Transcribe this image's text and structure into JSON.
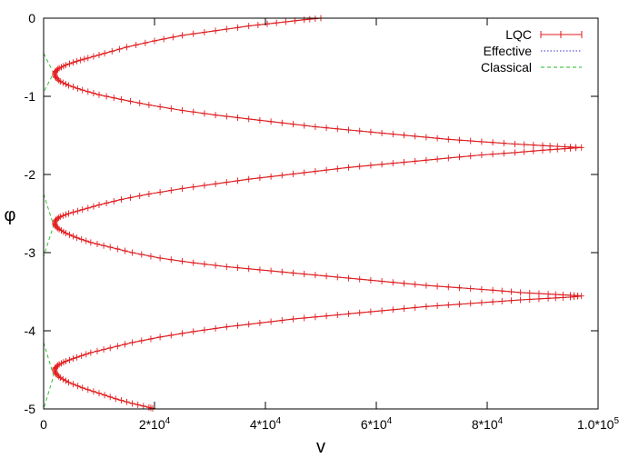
{
  "chart_data": {
    "type": "line",
    "xlabel": "v",
    "ylabel": "φ",
    "xlim": [
      0,
      100000
    ],
    "ylim": [
      -5,
      0
    ],
    "x_ticks": [
      {
        "value": 0,
        "label": "0"
      },
      {
        "value": 20000,
        "label": "2*10",
        "exp": "4"
      },
      {
        "value": 40000,
        "label": "4*10",
        "exp": "4"
      },
      {
        "value": 60000,
        "label": "6*10",
        "exp": "4"
      },
      {
        "value": 80000,
        "label": "8*10",
        "exp": "4"
      },
      {
        "value": 100000,
        "label": "1.0*10",
        "exp": "5"
      }
    ],
    "y_ticks": [
      {
        "value": 0,
        "label": "0"
      },
      {
        "value": -1,
        "label": "-1"
      },
      {
        "value": -2,
        "label": "-2"
      },
      {
        "value": -3,
        "label": "-3"
      },
      {
        "value": -4,
        "label": "-4"
      },
      {
        "value": -5,
        "label": "-5"
      }
    ],
    "legend_position": "top-right",
    "grid": false,
    "series": [
      {
        "name": "LQC",
        "style": "line-with-errorbars",
        "color": "#e41a1c",
        "bounce_v": 2000,
        "turnaround_v": 97000,
        "points": [
          [
            50000,
            0.0
          ],
          [
            47000,
            -0.02
          ],
          [
            42000,
            -0.06
          ],
          [
            37000,
            -0.1
          ],
          [
            31000,
            -0.16
          ],
          [
            25000,
            -0.22
          ],
          [
            20000,
            -0.29
          ],
          [
            15000,
            -0.37
          ],
          [
            11000,
            -0.45
          ],
          [
            8000,
            -0.51
          ],
          [
            6000,
            -0.55
          ],
          [
            4000,
            -0.6
          ],
          [
            2800,
            -0.64
          ],
          [
            2100,
            -0.68
          ],
          [
            2000,
            -0.72
          ],
          [
            2200,
            -0.76
          ],
          [
            3000,
            -0.81
          ],
          [
            4500,
            -0.86
          ],
          [
            7000,
            -0.92
          ],
          [
            10000,
            -0.98
          ],
          [
            14000,
            -1.04
          ],
          [
            19000,
            -1.11
          ],
          [
            25000,
            -1.18
          ],
          [
            31000,
            -1.24
          ],
          [
            37000,
            -1.29
          ],
          [
            43000,
            -1.34
          ],
          [
            49000,
            -1.39
          ],
          [
            55000,
            -1.43
          ],
          [
            61000,
            -1.47
          ],
          [
            67000,
            -1.51
          ],
          [
            73000,
            -1.55
          ],
          [
            79000,
            -1.58
          ],
          [
            85000,
            -1.61
          ],
          [
            90000,
            -1.63
          ],
          [
            94000,
            -1.645
          ],
          [
            97000,
            -1.655
          ],
          [
            94000,
            -1.67
          ],
          [
            90000,
            -1.69
          ],
          [
            85000,
            -1.72
          ],
          [
            79000,
            -1.75
          ],
          [
            73000,
            -1.79
          ],
          [
            67000,
            -1.83
          ],
          [
            61000,
            -1.87
          ],
          [
            55000,
            -1.91
          ],
          [
            49000,
            -1.96
          ],
          [
            43000,
            -2.01
          ],
          [
            37000,
            -2.06
          ],
          [
            31000,
            -2.12
          ],
          [
            25000,
            -2.18
          ],
          [
            19000,
            -2.25
          ],
          [
            14000,
            -2.32
          ],
          [
            10000,
            -2.39
          ],
          [
            7000,
            -2.45
          ],
          [
            4500,
            -2.5
          ],
          [
            3000,
            -2.54
          ],
          [
            2200,
            -2.58
          ],
          [
            2000,
            -2.62
          ],
          [
            2100,
            -2.66
          ],
          [
            2800,
            -2.7
          ],
          [
            4000,
            -2.75
          ],
          [
            6000,
            -2.81
          ],
          [
            8500,
            -2.87
          ],
          [
            12000,
            -2.93
          ],
          [
            16000,
            -3.0
          ],
          [
            21000,
            -3.07
          ],
          [
            27000,
            -3.13
          ],
          [
            33000,
            -3.18
          ],
          [
            39000,
            -3.22
          ],
          [
            45000,
            -3.26
          ],
          [
            51000,
            -3.3
          ],
          [
            57000,
            -3.34
          ],
          [
            63000,
            -3.38
          ],
          [
            69000,
            -3.42
          ],
          [
            75000,
            -3.45
          ],
          [
            81000,
            -3.48
          ],
          [
            86000,
            -3.51
          ],
          [
            91000,
            -3.53
          ],
          [
            95000,
            -3.545
          ],
          [
            97000,
            -3.555
          ],
          [
            95000,
            -3.57
          ],
          [
            91000,
            -3.585
          ],
          [
            86000,
            -3.605
          ],
          [
            81000,
            -3.63
          ],
          [
            75000,
            -3.66
          ],
          [
            69000,
            -3.69
          ],
          [
            63000,
            -3.73
          ],
          [
            57000,
            -3.77
          ],
          [
            51000,
            -3.81
          ],
          [
            45000,
            -3.85
          ],
          [
            39000,
            -3.9
          ],
          [
            33000,
            -3.95
          ],
          [
            27000,
            -4.01
          ],
          [
            21000,
            -4.08
          ],
          [
            16000,
            -4.15
          ],
          [
            12000,
            -4.22
          ],
          [
            8500,
            -4.28
          ],
          [
            6000,
            -4.34
          ],
          [
            4000,
            -4.39
          ],
          [
            2800,
            -4.43
          ],
          [
            2100,
            -4.47
          ],
          [
            2000,
            -4.51
          ],
          [
            2200,
            -4.55
          ],
          [
            3000,
            -4.6
          ],
          [
            4500,
            -4.66
          ],
          [
            7000,
            -4.73
          ],
          [
            10000,
            -4.8
          ],
          [
            13000,
            -4.87
          ],
          [
            16000,
            -4.93
          ],
          [
            19000,
            -4.98
          ],
          [
            20000,
            -5.0
          ]
        ]
      },
      {
        "name": "Effective",
        "style": "dotted",
        "color": "#3333cc"
      },
      {
        "name": "Classical",
        "style": "dashed",
        "color": "#22bb22",
        "segments_phi": [
          [
            -0.45,
            -0.95
          ],
          [
            -2.25,
            -3.05
          ],
          [
            -4.15,
            -5.0
          ]
        ]
      }
    ]
  }
}
